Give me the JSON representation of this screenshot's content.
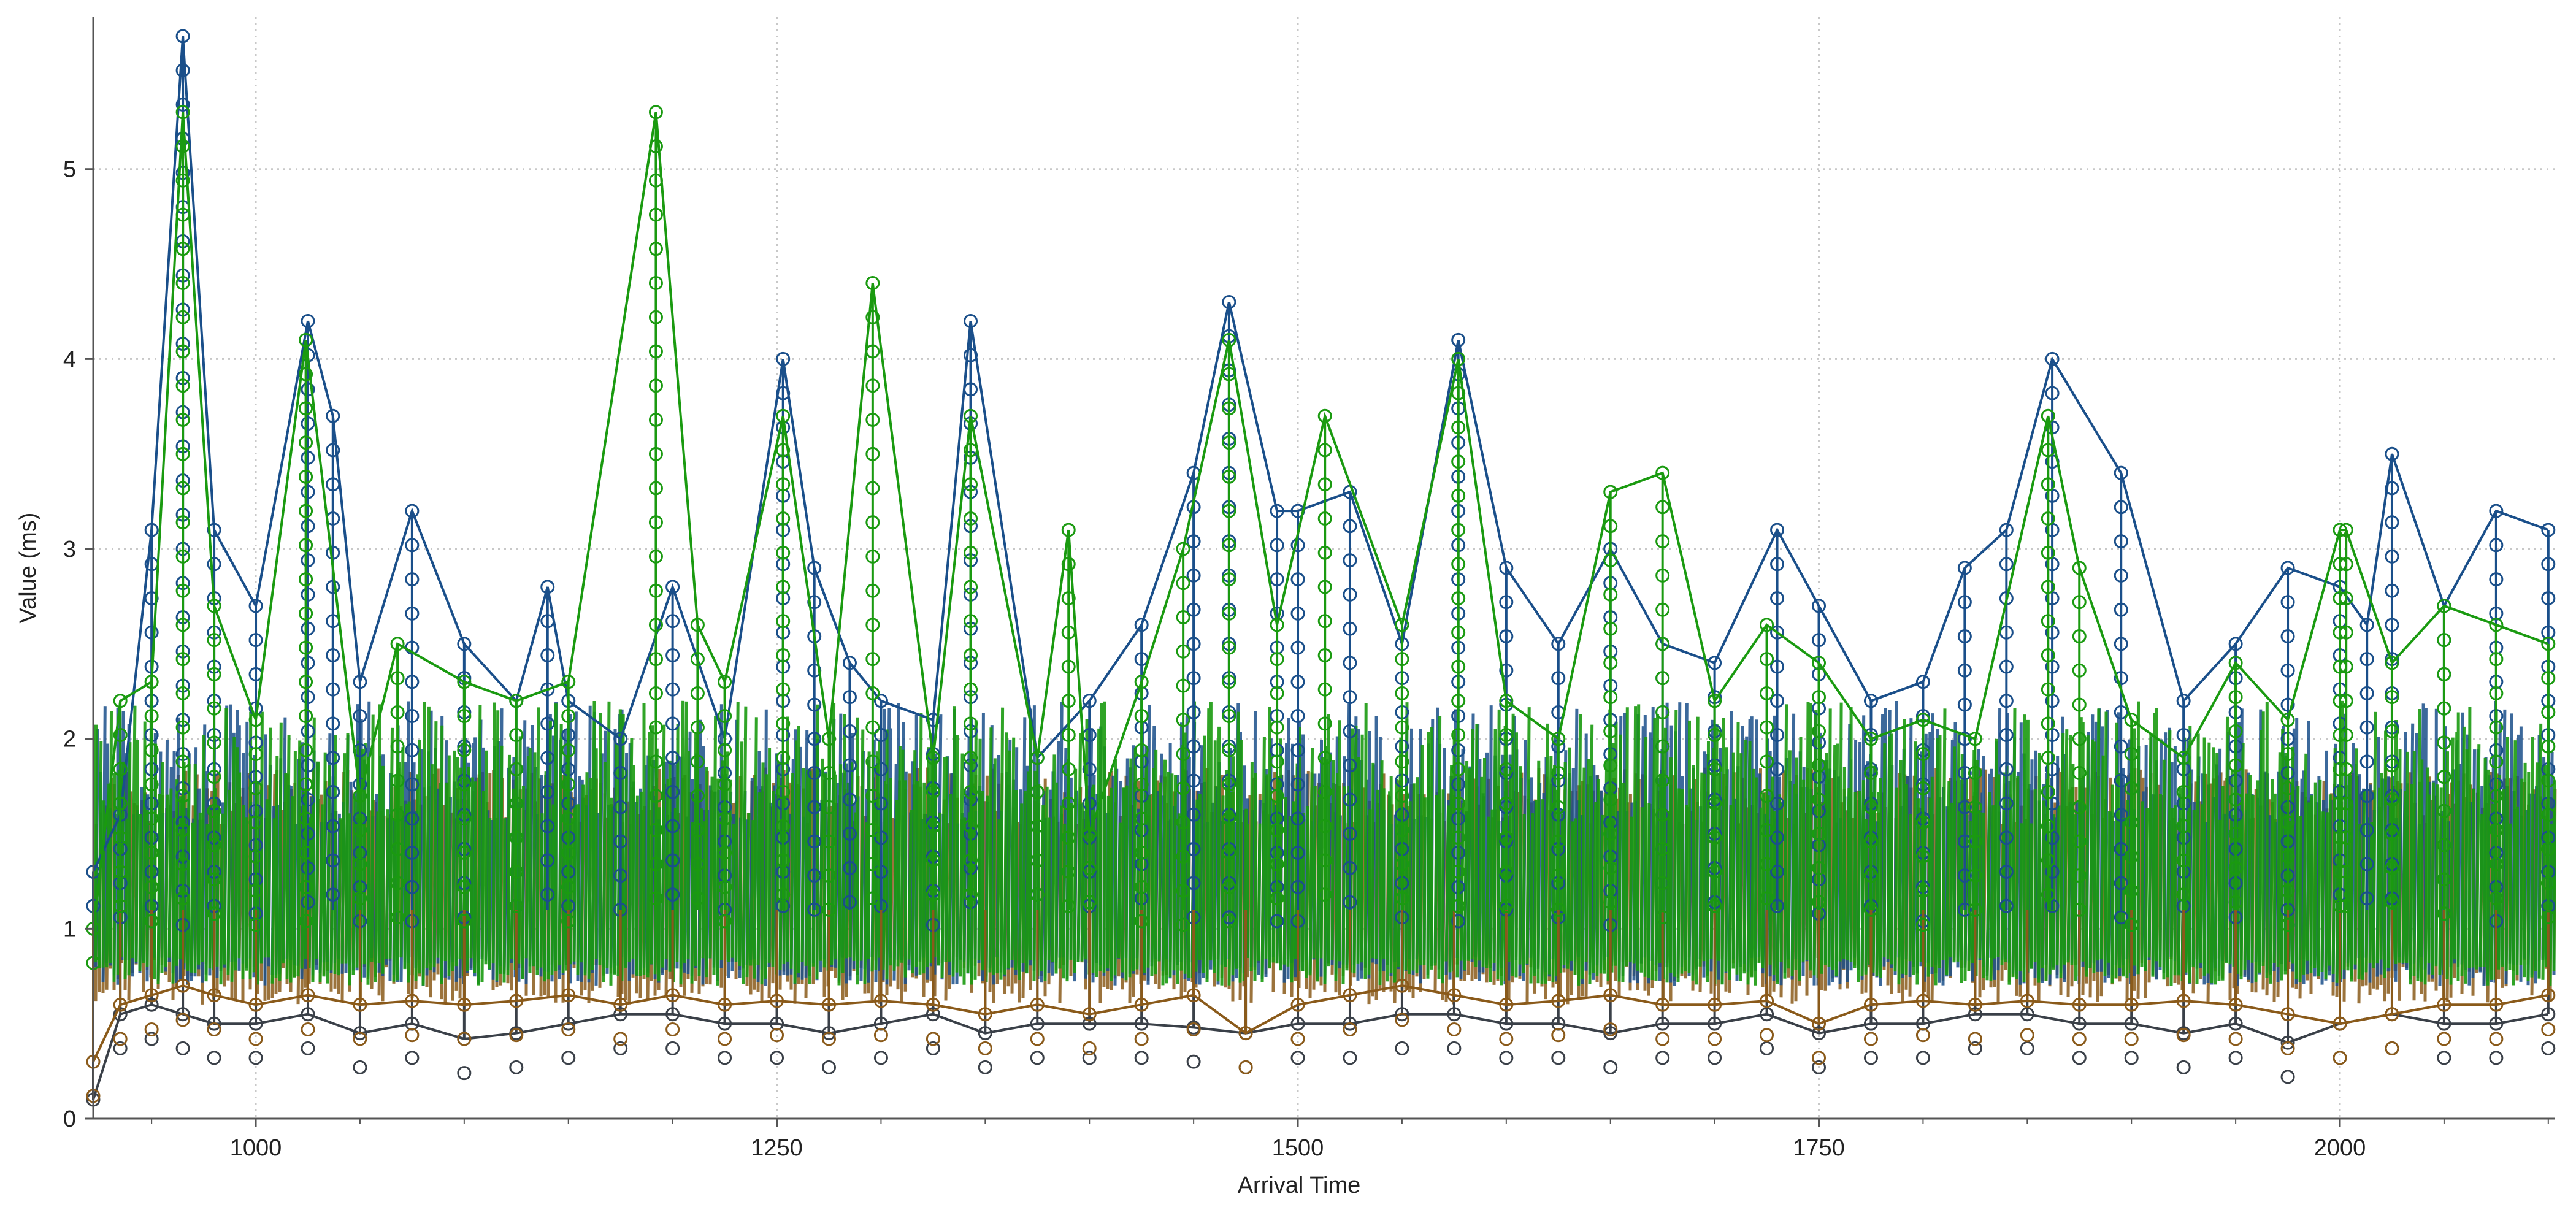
{
  "chart_data": {
    "type": "line",
    "title": "",
    "xlabel": "Arrival Time",
    "ylabel": "Value (ms)",
    "xlim": [
      922,
      2103
    ],
    "ylim": [
      0,
      5.8
    ],
    "x_ticks": [
      "1000",
      "1250",
      "1500",
      "1750",
      "2000"
    ],
    "x_tick_values": [
      1000,
      1250,
      1500,
      1750,
      2000
    ],
    "y_ticks": [
      "0",
      "1",
      "2",
      "3",
      "4",
      "5"
    ],
    "y_tick_values": [
      0,
      1,
      2,
      3,
      4,
      5
    ],
    "grid": true,
    "legend": "none",
    "marker": "open-circle",
    "series": [
      {
        "color": "#3a4048",
        "x": [
          922,
          935,
          950,
          965,
          980,
          1000,
          1025,
          1050,
          1075,
          1100,
          1125,
          1150,
          1175,
          1200,
          1225,
          1250,
          1275,
          1300,
          1325,
          1350,
          1375,
          1400,
          1425,
          1450,
          1475,
          1500,
          1525,
          1550,
          1575,
          1600,
          1625,
          1650,
          1675,
          1700,
          1725,
          1750,
          1775,
          1800,
          1825,
          1850,
          1875,
          1900,
          1925,
          1950,
          1975,
          2000,
          2025,
          2050,
          2075,
          2100
        ],
        "values": [
          0.1,
          0.55,
          0.6,
          0.55,
          0.5,
          0.5,
          0.55,
          0.45,
          0.5,
          0.42,
          0.45,
          0.5,
          0.55,
          0.55,
          0.5,
          0.5,
          0.45,
          0.5,
          0.55,
          0.45,
          0.5,
          0.5,
          0.5,
          0.48,
          0.45,
          0.5,
          0.5,
          0.55,
          0.55,
          0.5,
          0.5,
          0.45,
          0.5,
          0.5,
          0.55,
          0.45,
          0.5,
          0.5,
          0.55,
          0.55,
          0.5,
          0.5,
          0.45,
          0.5,
          0.4,
          0.5,
          0.55,
          0.5,
          0.5,
          0.55
        ]
      },
      {
        "color": "#1a4f8a",
        "x": [
          922,
          935,
          950,
          965,
          980,
          1000,
          1025,
          1037,
          1050,
          1075,
          1100,
          1125,
          1140,
          1150,
          1175,
          1200,
          1225,
          1253,
          1268,
          1285,
          1300,
          1325,
          1343,
          1375,
          1400,
          1425,
          1450,
          1467,
          1490,
          1500,
          1525,
          1550,
          1577,
          1600,
          1625,
          1650,
          1675,
          1700,
          1730,
          1750,
          1775,
          1800,
          1820,
          1840,
          1862,
          1895,
          1925,
          1950,
          1975,
          2000,
          2013,
          2025,
          2050,
          2075,
          2100
        ],
        "values": [
          1.3,
          1.6,
          3.1,
          5.7,
          3.1,
          2.7,
          4.2,
          3.7,
          2.3,
          3.2,
          2.5,
          2.2,
          2.8,
          2.2,
          2.0,
          2.8,
          2.0,
          4.0,
          2.9,
          2.4,
          2.2,
          2.1,
          4.2,
          1.9,
          2.2,
          2.6,
          3.4,
          4.3,
          3.2,
          3.2,
          3.3,
          2.5,
          4.1,
          2.9,
          2.5,
          3.0,
          2.5,
          2.4,
          3.1,
          2.7,
          2.2,
          2.3,
          2.9,
          3.1,
          4.0,
          3.4,
          2.2,
          2.5,
          2.9,
          2.8,
          2.6,
          3.5,
          2.7,
          3.2,
          3.1
        ]
      },
      {
        "color": "#8a5a1a",
        "x": [
          922,
          935,
          950,
          965,
          980,
          1000,
          1025,
          1050,
          1075,
          1100,
          1125,
          1150,
          1175,
          1200,
          1225,
          1250,
          1275,
          1300,
          1325,
          1350,
          1375,
          1400,
          1425,
          1450,
          1475,
          1500,
          1525,
          1550,
          1575,
          1600,
          1625,
          1650,
          1675,
          1700,
          1725,
          1750,
          1775,
          1800,
          1825,
          1850,
          1875,
          1900,
          1925,
          1950,
          1975,
          2000,
          2025,
          2050,
          2075,
          2100
        ],
        "values": [
          0.3,
          0.6,
          0.65,
          0.7,
          0.65,
          0.6,
          0.65,
          0.6,
          0.62,
          0.6,
          0.62,
          0.65,
          0.6,
          0.65,
          0.6,
          0.62,
          0.6,
          0.62,
          0.6,
          0.55,
          0.6,
          0.55,
          0.6,
          0.65,
          0.45,
          0.6,
          0.65,
          0.7,
          0.65,
          0.6,
          0.62,
          0.65,
          0.6,
          0.6,
          0.62,
          0.5,
          0.6,
          0.62,
          0.6,
          0.62,
          0.6,
          0.6,
          0.62,
          0.6,
          0.55,
          0.5,
          0.55,
          0.6,
          0.6,
          0.65
        ]
      },
      {
        "color": "#1a9a10",
        "x": [
          922,
          935,
          950,
          965,
          980,
          1000,
          1024,
          1050,
          1068,
          1100,
          1125,
          1150,
          1192,
          1212,
          1225,
          1253,
          1275,
          1296,
          1325,
          1343,
          1375,
          1390,
          1400,
          1425,
          1445,
          1467,
          1490,
          1513,
          1550,
          1577,
          1600,
          1625,
          1650,
          1675,
          1700,
          1725,
          1750,
          1775,
          1800,
          1825,
          1860,
          1875,
          1900,
          1925,
          1950,
          1975,
          2000,
          2003,
          2025,
          2050,
          2075,
          2100
        ],
        "values": [
          1.0,
          2.2,
          2.3,
          5.3,
          2.7,
          2.1,
          4.1,
          1.7,
          2.5,
          2.3,
          2.2,
          2.3,
          5.3,
          2.6,
          2.3,
          3.7,
          2.0,
          4.4,
          1.9,
          3.7,
          1.9,
          3.1,
          1.5,
          2.3,
          3.0,
          4.1,
          2.6,
          3.7,
          2.6,
          4.0,
          2.2,
          2.0,
          3.3,
          3.4,
          2.2,
          2.6,
          2.4,
          2.0,
          2.1,
          2.0,
          3.7,
          2.9,
          2.1,
          1.9,
          2.4,
          2.1,
          3.1,
          3.1,
          2.4,
          2.7,
          2.6,
          2.5
        ]
      }
    ]
  }
}
